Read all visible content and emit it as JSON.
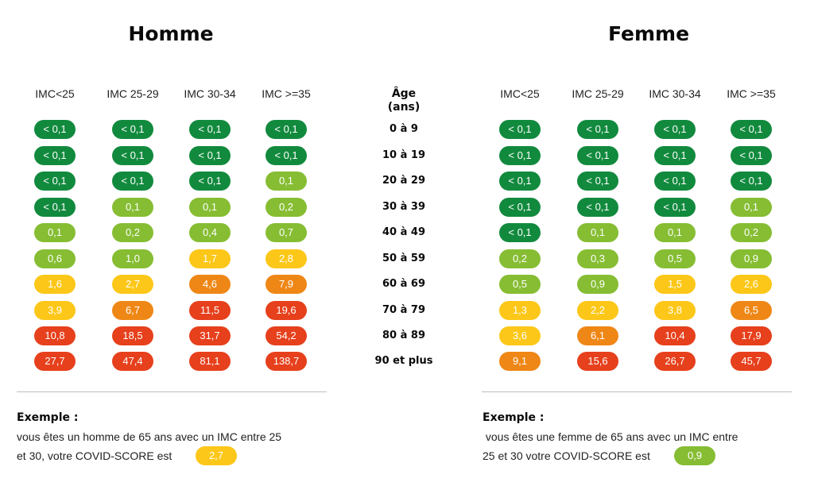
{
  "colors": {
    "dark_green": "#128a3e",
    "light_green": "#86bd33",
    "yellow": "#fcc718",
    "orange": "#ef8716",
    "red": "#e6401c"
  },
  "men": {
    "title": "Homme",
    "headers": [
      "IMC<25",
      "IMC 25-29",
      "IMC 30-34",
      "IMC >=35"
    ],
    "rows": [
      [
        {
          "v": "< 0,1",
          "c": "dark_green"
        },
        {
          "v": "< 0,1",
          "c": "dark_green"
        },
        {
          "v": "< 0,1",
          "c": "dark_green"
        },
        {
          "v": "< 0,1",
          "c": "dark_green"
        }
      ],
      [
        {
          "v": "< 0,1",
          "c": "dark_green"
        },
        {
          "v": "< 0,1",
          "c": "dark_green"
        },
        {
          "v": "< 0,1",
          "c": "dark_green"
        },
        {
          "v": "< 0,1",
          "c": "dark_green"
        }
      ],
      [
        {
          "v": "< 0,1",
          "c": "dark_green"
        },
        {
          "v": "< 0,1",
          "c": "dark_green"
        },
        {
          "v": "< 0,1",
          "c": "dark_green"
        },
        {
          "v": "0,1",
          "c": "light_green"
        }
      ],
      [
        {
          "v": "< 0,1",
          "c": "dark_green"
        },
        {
          "v": "0,1",
          "c": "light_green"
        },
        {
          "v": "0,1",
          "c": "light_green"
        },
        {
          "v": "0,2",
          "c": "light_green"
        }
      ],
      [
        {
          "v": "0,1",
          "c": "light_green"
        },
        {
          "v": "0,2",
          "c": "light_green"
        },
        {
          "v": "0,4",
          "c": "light_green"
        },
        {
          "v": "0,7",
          "c": "light_green"
        }
      ],
      [
        {
          "v": "0,6",
          "c": "light_green"
        },
        {
          "v": "1,0",
          "c": "light_green"
        },
        {
          "v": "1,7",
          "c": "yellow"
        },
        {
          "v": "2,8",
          "c": "yellow"
        }
      ],
      [
        {
          "v": "1,6",
          "c": "yellow"
        },
        {
          "v": "2,7",
          "c": "yellow"
        },
        {
          "v": "4,6",
          "c": "orange"
        },
        {
          "v": "7,9",
          "c": "orange"
        }
      ],
      [
        {
          "v": "3,9",
          "c": "yellow"
        },
        {
          "v": "6,7",
          "c": "orange"
        },
        {
          "v": "11,5",
          "c": "red"
        },
        {
          "v": "19,6",
          "c": "red"
        }
      ],
      [
        {
          "v": "10,8",
          "c": "red"
        },
        {
          "v": "18,5",
          "c": "red"
        },
        {
          "v": "31,7",
          "c": "red"
        },
        {
          "v": "54,2",
          "c": "red"
        }
      ],
      [
        {
          "v": "27,7",
          "c": "red"
        },
        {
          "v": "47,4",
          "c": "red"
        },
        {
          "v": "81,1",
          "c": "red"
        },
        {
          "v": "138,7",
          "c": "red"
        }
      ]
    ],
    "example": {
      "title": "Exemple :",
      "line1": "vous êtes un homme de 65 ans avec un IMC entre 25",
      "line2": "et 30, votre COVID-SCORE est",
      "score": "2,7",
      "score_color": "yellow"
    }
  },
  "age": {
    "header_line1": "Âge",
    "header_line2": "(ans)",
    "labels": [
      "0 à 9",
      "10 à 19",
      "20 à 29",
      "30 à 39",
      "40 à 49",
      "50 à 59",
      "60 à 69",
      "70 à 79",
      "80 à 89",
      "90 et plus"
    ]
  },
  "women": {
    "title": "Femme",
    "headers": [
      "IMC<25",
      "IMC 25-29",
      "IMC 30-34",
      "IMC >=35"
    ],
    "rows": [
      [
        {
          "v": "< 0,1",
          "c": "dark_green"
        },
        {
          "v": "< 0,1",
          "c": "dark_green"
        },
        {
          "v": "< 0,1",
          "c": "dark_green"
        },
        {
          "v": "< 0,1",
          "c": "dark_green"
        }
      ],
      [
        {
          "v": "< 0,1",
          "c": "dark_green"
        },
        {
          "v": "< 0,1",
          "c": "dark_green"
        },
        {
          "v": "< 0,1",
          "c": "dark_green"
        },
        {
          "v": "< 0,1",
          "c": "dark_green"
        }
      ],
      [
        {
          "v": "< 0,1",
          "c": "dark_green"
        },
        {
          "v": "< 0,1",
          "c": "dark_green"
        },
        {
          "v": "< 0,1",
          "c": "dark_green"
        },
        {
          "v": "< 0,1",
          "c": "dark_green"
        }
      ],
      [
        {
          "v": "< 0,1",
          "c": "dark_green"
        },
        {
          "v": "< 0,1",
          "c": "dark_green"
        },
        {
          "v": "< 0,1",
          "c": "dark_green"
        },
        {
          "v": "0,1",
          "c": "light_green"
        }
      ],
      [
        {
          "v": "< 0,1",
          "c": "dark_green"
        },
        {
          "v": "0,1",
          "c": "light_green"
        },
        {
          "v": "0,1",
          "c": "light_green"
        },
        {
          "v": "0,2",
          "c": "light_green"
        }
      ],
      [
        {
          "v": "0,2",
          "c": "light_green"
        },
        {
          "v": "0,3",
          "c": "light_green"
        },
        {
          "v": "0,5",
          "c": "light_green"
        },
        {
          "v": "0,9",
          "c": "light_green"
        }
      ],
      [
        {
          "v": "0,5",
          "c": "light_green"
        },
        {
          "v": "0,9",
          "c": "light_green"
        },
        {
          "v": "1,5",
          "c": "yellow"
        },
        {
          "v": "2,6",
          "c": "yellow"
        }
      ],
      [
        {
          "v": "1,3",
          "c": "yellow"
        },
        {
          "v": "2,2",
          "c": "yellow"
        },
        {
          "v": "3,8",
          "c": "yellow"
        },
        {
          "v": "6,5",
          "c": "orange"
        }
      ],
      [
        {
          "v": "3,6",
          "c": "yellow"
        },
        {
          "v": "6,1",
          "c": "orange"
        },
        {
          "v": "10,4",
          "c": "red"
        },
        {
          "v": "17,9",
          "c": "red"
        }
      ],
      [
        {
          "v": "9,1",
          "c": "orange"
        },
        {
          "v": "15,6",
          "c": "red"
        },
        {
          "v": "26,7",
          "c": "red"
        },
        {
          "v": "45,7",
          "c": "red"
        }
      ]
    ],
    "example": {
      "title": "Exemple :",
      "line1": " vous êtes une femme de 65 ans avec un IMC entre",
      "line2": "25 et 30 votre COVID-SCORE est",
      "score": "0,9",
      "score_color": "light_green"
    }
  }
}
